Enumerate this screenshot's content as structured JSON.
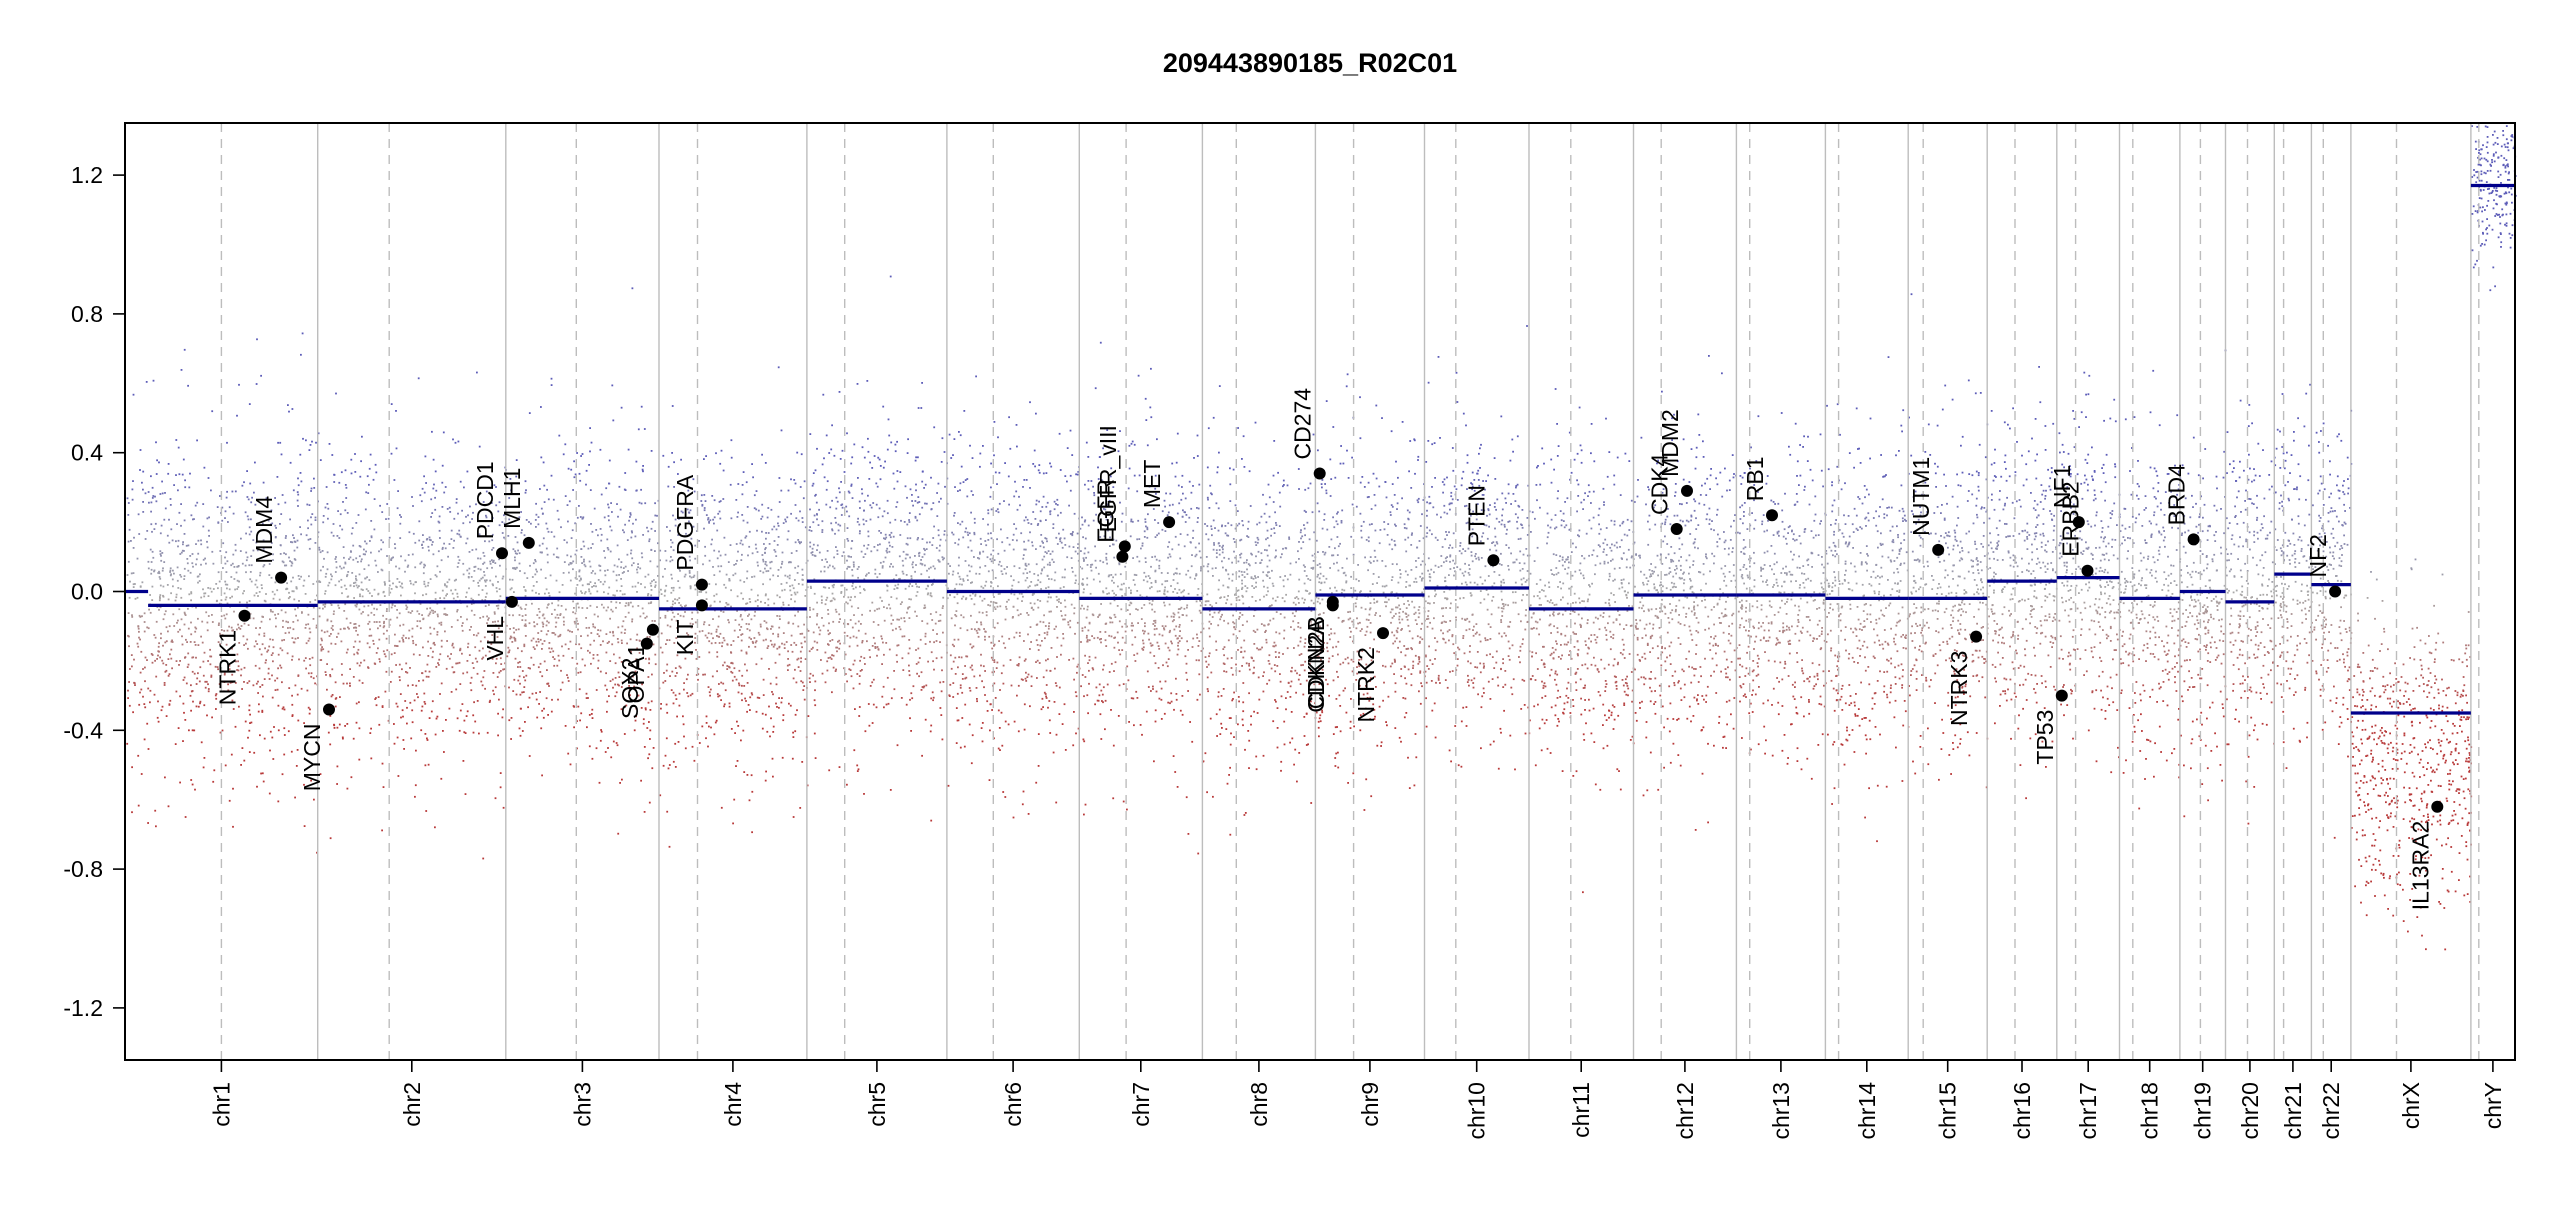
{
  "chart_data": {
    "type": "scatter",
    "title": "209443890185_R02C01",
    "xlabel": "",
    "ylabel": "",
    "ylim": [
      -1.35,
      1.35
    ],
    "y_ticks": [
      -1.2,
      -0.8,
      -0.4,
      0.0,
      0.4,
      0.8,
      1.2
    ],
    "y_tick_labels": [
      "-1.2",
      "-0.8",
      "-0.4",
      "0.0",
      "0.4",
      "0.8",
      "1.2"
    ],
    "grid": false,
    "colors": {
      "segment": "#00008b",
      "gain": "#5d5db8",
      "loss": "#b83a3a",
      "neutral": "#a8a8a8",
      "gene_point": "#000000",
      "chrom_boundary": "#bdbdbd",
      "centromere": "#bdbdbd"
    },
    "chromosomes": [
      {
        "name": "chr1",
        "label": "chr1",
        "size": 249,
        "centromere": 0.5,
        "mean": -0.05,
        "spread": 0.24
      },
      {
        "name": "chr2",
        "label": "chr2",
        "size": 243,
        "centromere": 0.38,
        "mean": -0.04,
        "spread": 0.22
      },
      {
        "name": "chr3",
        "label": "chr3",
        "size": 198,
        "centromere": 0.46,
        "mean": -0.04,
        "spread": 0.22
      },
      {
        "name": "chr4",
        "label": "chr4",
        "size": 191,
        "centromere": 0.26,
        "mean": -0.06,
        "spread": 0.22
      },
      {
        "name": "chr5",
        "label": "chr5",
        "size": 181,
        "centromere": 0.27,
        "mean": 0.04,
        "spread": 0.22
      },
      {
        "name": "chr6",
        "label": "chr6",
        "size": 171,
        "centromere": 0.35,
        "mean": 0.0,
        "spread": 0.22
      },
      {
        "name": "chr7",
        "label": "chr7",
        "size": 159,
        "centromere": 0.38,
        "mean": -0.02,
        "spread": 0.22
      },
      {
        "name": "chr8",
        "label": "chr8",
        "size": 146,
        "centromere": 0.3,
        "mean": -0.05,
        "spread": 0.22
      },
      {
        "name": "chr9",
        "label": "chr9",
        "size": 141,
        "centromere": 0.35,
        "mean": -0.01,
        "spread": 0.22
      },
      {
        "name": "chr10",
        "label": "chr10",
        "size": 135,
        "centromere": 0.3,
        "mean": 0.02,
        "spread": 0.22
      },
      {
        "name": "chr11",
        "label": "chr11",
        "size": 135,
        "centromere": 0.4,
        "mean": -0.04,
        "spread": 0.22
      },
      {
        "name": "chr12",
        "label": "chr12",
        "size": 133,
        "centromere": 0.27,
        "mean": -0.01,
        "spread": 0.22
      },
      {
        "name": "chr13",
        "label": "chr13",
        "size": 115,
        "centromere": 0.15,
        "mean": -0.01,
        "spread": 0.22
      },
      {
        "name": "chr14",
        "label": "chr14",
        "size": 107,
        "centromere": 0.16,
        "mean": -0.02,
        "spread": 0.22
      },
      {
        "name": "chr15",
        "label": "chr15",
        "size": 102,
        "centromere": 0.19,
        "mean": -0.01,
        "spread": 0.22
      },
      {
        "name": "chr16",
        "label": "chr16",
        "size": 90,
        "centromere": 0.4,
        "mean": 0.03,
        "spread": 0.22
      },
      {
        "name": "chr17",
        "label": "chr17",
        "size": 81,
        "centromere": 0.3,
        "mean": 0.04,
        "spread": 0.22
      },
      {
        "name": "chr18",
        "label": "chr18",
        "size": 78,
        "centromere": 0.22,
        "mean": -0.02,
        "spread": 0.22
      },
      {
        "name": "chr19",
        "label": "chr19",
        "size": 59,
        "centromere": 0.45,
        "mean": 0.0,
        "spread": 0.22
      },
      {
        "name": "chr20",
        "label": "chr20",
        "size": 63,
        "centromere": 0.45,
        "mean": -0.03,
        "spread": 0.22
      },
      {
        "name": "chr21",
        "label": "chr21",
        "size": 48,
        "centromere": 0.25,
        "mean": 0.05,
        "spread": 0.22
      },
      {
        "name": "chr22",
        "label": "chr22",
        "size": 51,
        "centromere": 0.3,
        "mean": 0.02,
        "spread": 0.22
      },
      {
        "name": "chrX",
        "label": "chrX",
        "size": 155,
        "centromere": 0.38,
        "mean": -0.5,
        "spread": 0.2
      },
      {
        "name": "chrY",
        "label": "chrY",
        "size": 57,
        "centromere": 0.18,
        "mean": 1.2,
        "spread": 0.12
      }
    ],
    "segments": [
      {
        "chrom": "chr1",
        "start": 0.0,
        "end": 0.12,
        "value": 0.0
      },
      {
        "chrom": "chr1",
        "start": 0.12,
        "end": 1.0,
        "value": -0.04
      },
      {
        "chrom": "chr2",
        "start": 0.0,
        "end": 1.0,
        "value": -0.03
      },
      {
        "chrom": "chr3",
        "start": 0.0,
        "end": 1.0,
        "value": -0.02
      },
      {
        "chrom": "chr4",
        "start": 0.0,
        "end": 1.0,
        "value": -0.05
      },
      {
        "chrom": "chr5",
        "start": 0.0,
        "end": 1.0,
        "value": 0.03
      },
      {
        "chrom": "chr6",
        "start": 0.0,
        "end": 1.0,
        "value": 0.0
      },
      {
        "chrom": "chr7",
        "start": 0.0,
        "end": 1.0,
        "value": -0.02
      },
      {
        "chrom": "chr8",
        "start": 0.0,
        "end": 1.0,
        "value": -0.05
      },
      {
        "chrom": "chr9",
        "start": 0.0,
        "end": 1.0,
        "value": -0.01
      },
      {
        "chrom": "chr10",
        "start": 0.0,
        "end": 1.0,
        "value": 0.01
      },
      {
        "chrom": "chr11",
        "start": 0.0,
        "end": 1.0,
        "value": -0.05
      },
      {
        "chrom": "chr12",
        "start": 0.0,
        "end": 1.0,
        "value": -0.01
      },
      {
        "chrom": "chr13",
        "start": 0.0,
        "end": 1.0,
        "value": -0.01
      },
      {
        "chrom": "chr14",
        "start": 0.0,
        "end": 1.0,
        "value": -0.02
      },
      {
        "chrom": "chr15",
        "start": 0.0,
        "end": 1.0,
        "value": -0.02
      },
      {
        "chrom": "chr16",
        "start": 0.0,
        "end": 1.0,
        "value": 0.03
      },
      {
        "chrom": "chr17",
        "start": 0.0,
        "end": 1.0,
        "value": 0.04
      },
      {
        "chrom": "chr18",
        "start": 0.0,
        "end": 1.0,
        "value": -0.02
      },
      {
        "chrom": "chr19",
        "start": 0.0,
        "end": 1.0,
        "value": 0.0
      },
      {
        "chrom": "chr20",
        "start": 0.0,
        "end": 1.0,
        "value": -0.03
      },
      {
        "chrom": "chr21",
        "start": 0.0,
        "end": 1.0,
        "value": 0.05
      },
      {
        "chrom": "chr22",
        "start": 0.0,
        "end": 1.0,
        "value": 0.02
      },
      {
        "chrom": "chrX",
        "start": 0.0,
        "end": 1.0,
        "value": -0.35
      },
      {
        "chrom": "chrY",
        "start": 0.0,
        "end": 1.0,
        "value": 1.17
      }
    ],
    "genes": [
      {
        "name": "NTRK1",
        "chrom": "chr1",
        "pos": 0.62,
        "value": -0.07,
        "label_dir": "down"
      },
      {
        "name": "MDM4",
        "chrom": "chr1",
        "pos": 0.81,
        "value": 0.04,
        "label_dir": "up"
      },
      {
        "name": "MYCN",
        "chrom": "chr2",
        "pos": 0.06,
        "value": -0.34,
        "label_dir": "down"
      },
      {
        "name": "PDCD1",
        "chrom": "chr2",
        "pos": 0.98,
        "value": 0.11,
        "label_dir": "up"
      },
      {
        "name": "VHL",
        "chrom": "chr3",
        "pos": 0.04,
        "value": -0.03,
        "label_dir": "down"
      },
      {
        "name": "MLH1",
        "chrom": "chr3",
        "pos": 0.15,
        "value": 0.14,
        "label_dir": "up"
      },
      {
        "name": "SOX2",
        "chrom": "chr3",
        "pos": 0.92,
        "value": -0.15,
        "label_dir": "down"
      },
      {
        "name": "OPA1",
        "chrom": "chr3",
        "pos": 0.96,
        "value": -0.11,
        "label_dir": "down"
      },
      {
        "name": "KIT",
        "chrom": "chr4",
        "pos": 0.29,
        "value": -0.04,
        "label_dir": "down"
      },
      {
        "name": "PDGFRA",
        "chrom": "chr4",
        "pos": 0.29,
        "value": 0.02,
        "label_dir": "up"
      },
      {
        "name": "EGFR",
        "chrom": "chr7",
        "pos": 0.35,
        "value": 0.1,
        "label_dir": "up"
      },
      {
        "name": "EGFR_vIII",
        "chrom": "chr7",
        "pos": 0.37,
        "value": 0.13,
        "label_dir": "up"
      },
      {
        "name": "MET",
        "chrom": "chr7",
        "pos": 0.73,
        "value": 0.2,
        "label_dir": "up"
      },
      {
        "name": "CD274",
        "chrom": "chr9",
        "pos": 0.04,
        "value": 0.34,
        "label_dir": "up"
      },
      {
        "name": "CDKN2A",
        "chrom": "chr9",
        "pos": 0.16,
        "value": -0.04,
        "label_dir": "down"
      },
      {
        "name": "CDKN2B",
        "chrom": "chr9",
        "pos": 0.16,
        "value": -0.03,
        "label_dir": "down"
      },
      {
        "name": "NTRK2",
        "chrom": "chr9",
        "pos": 0.62,
        "value": -0.12,
        "label_dir": "down"
      },
      {
        "name": "PTEN",
        "chrom": "chr10",
        "pos": 0.66,
        "value": 0.09,
        "label_dir": "up"
      },
      {
        "name": "CDK4",
        "chrom": "chr12",
        "pos": 0.42,
        "value": 0.18,
        "label_dir": "up"
      },
      {
        "name": "MDM2",
        "chrom": "chr12",
        "pos": 0.52,
        "value": 0.29,
        "label_dir": "up"
      },
      {
        "name": "RB1",
        "chrom": "chr13",
        "pos": 0.4,
        "value": 0.22,
        "label_dir": "up"
      },
      {
        "name": "NUTM1",
        "chrom": "chr15",
        "pos": 0.38,
        "value": 0.12,
        "label_dir": "up"
      },
      {
        "name": "NTRK3",
        "chrom": "chr15",
        "pos": 0.86,
        "value": -0.13,
        "label_dir": "down"
      },
      {
        "name": "TP53",
        "chrom": "chr17",
        "pos": 0.08,
        "value": -0.3,
        "label_dir": "down"
      },
      {
        "name": "NF1",
        "chrom": "chr17",
        "pos": 0.35,
        "value": 0.2,
        "label_dir": "up"
      },
      {
        "name": "ERBB2",
        "chrom": "chr17",
        "pos": 0.49,
        "value": 0.06,
        "label_dir": "up"
      },
      {
        "name": "BRD4",
        "chrom": "chr19",
        "pos": 0.3,
        "value": 0.15,
        "label_dir": "up"
      },
      {
        "name": "NF2",
        "chrom": "chr22",
        "pos": 0.6,
        "value": 0.0,
        "label_dir": "up"
      },
      {
        "name": "IL13RA2",
        "chrom": "chrX",
        "pos": 0.72,
        "value": -0.62,
        "label_dir": "down"
      }
    ]
  }
}
